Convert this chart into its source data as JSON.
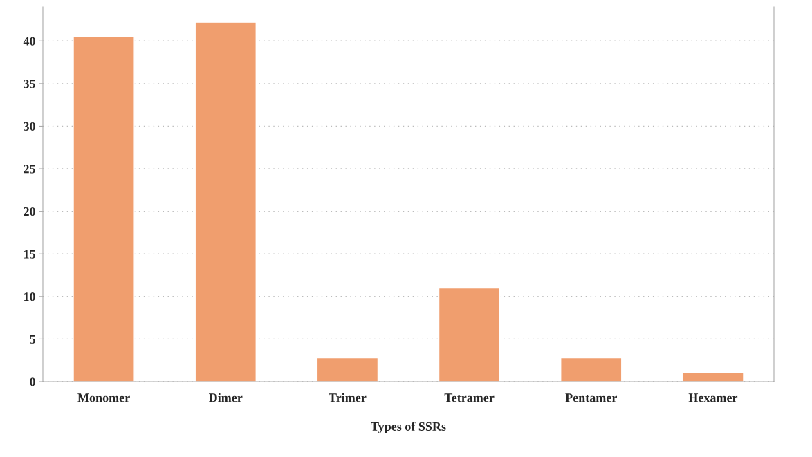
{
  "chart_data": {
    "type": "bar",
    "xlabel": "Types of SSRs",
    "categories": [
      "Monomer",
      "Dimer",
      "Trimer",
      "Tetramer",
      "Pentamer",
      "Hexamer"
    ],
    "values": [
      40.5,
      42.2,
      2.8,
      11,
      2.8,
      1.1
    ],
    "color": "#f09e6e",
    "ylim": [
      0,
      44
    ],
    "yticks": [
      0,
      5,
      10,
      15,
      20,
      25,
      30,
      35,
      40
    ],
    "grid": "y"
  }
}
